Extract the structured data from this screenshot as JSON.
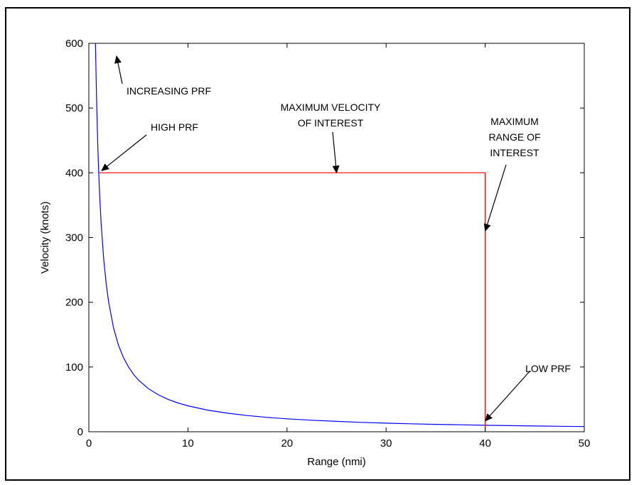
{
  "chart_data": {
    "type": "line",
    "title": "",
    "xlabel": "Range (nmi)",
    "ylabel": "Velocity (knots)",
    "xlim": [
      0,
      50
    ],
    "ylim": [
      0,
      600
    ],
    "xticks": [
      0,
      10,
      20,
      30,
      40,
      50
    ],
    "yticks": [
      0,
      100,
      200,
      300,
      400,
      500,
      600
    ],
    "grid": false,
    "series": [
      {
        "name": "",
        "color": "#0000ff",
        "relation": "velocity = 400 / range",
        "x": [
          0.667,
          0.7,
          0.75,
          0.8,
          0.9,
          1,
          1.1,
          1.25,
          1.5,
          1.75,
          2,
          2.5,
          3,
          3.5,
          4,
          4.5,
          5,
          6,
          7,
          8,
          9,
          10,
          12,
          14,
          16,
          18,
          20,
          22.5,
          25,
          27.5,
          30,
          32.5,
          35,
          37.5,
          40,
          42.5,
          45,
          47.5,
          50
        ],
        "y": [
          600,
          571.4,
          533.3,
          500,
          444.4,
          400,
          363.6,
          320,
          266.7,
          228.6,
          200,
          160,
          133.3,
          114.3,
          100,
          88.9,
          80,
          66.7,
          57.1,
          50,
          44.4,
          40,
          33.3,
          28.6,
          25,
          22.2,
          20,
          17.8,
          16,
          14.5,
          13.3,
          12.3,
          11.4,
          10.7,
          10,
          9.4,
          8.9,
          8.4,
          8
        ]
      },
      {
        "name": "",
        "color": "#ff0000",
        "x": [
          1,
          40,
          40
        ],
        "y": [
          400,
          400,
          0
        ]
      }
    ],
    "annotations": [
      {
        "lines": [
          "INCREASING PRF"
        ],
        "points_to": [
          1,
          600
        ]
      },
      {
        "lines": [
          "HIGH PRF"
        ],
        "points_to": [
          1,
          400
        ]
      },
      {
        "lines": [
          "MAXIMUM VELOCITY",
          "OF INTEREST"
        ],
        "points_to": [
          25,
          400
        ]
      },
      {
        "lines": [
          "MAXIMUM",
          "RANGE OF",
          "INTEREST"
        ],
        "points_to": [
          40,
          310
        ]
      },
      {
        "lines": [
          "LOW PRF"
        ],
        "points_to": [
          40,
          10
        ]
      }
    ]
  }
}
